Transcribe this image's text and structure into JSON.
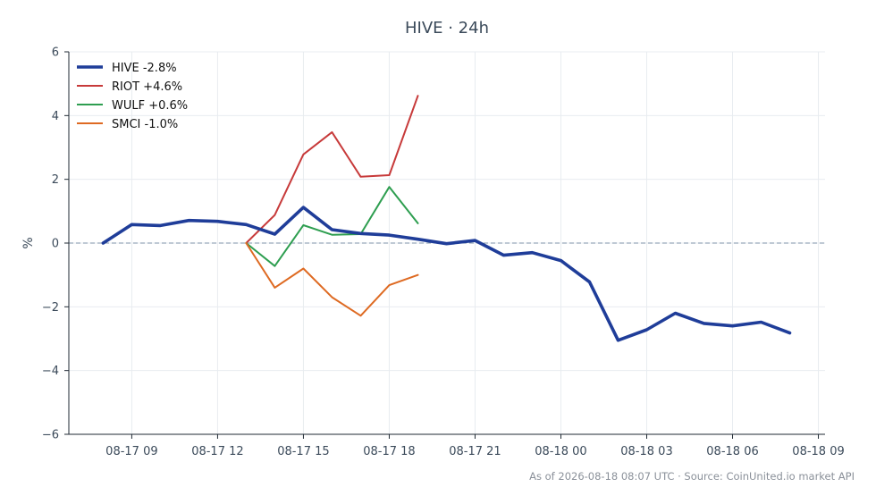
{
  "chart_data": {
    "type": "line",
    "title": "HIVE · 24h",
    "xlabel": "",
    "ylabel": "%",
    "ylim": [
      -6,
      6
    ],
    "yticks": [
      -6,
      -4,
      -2,
      0,
      2,
      4,
      6
    ],
    "ytick_labels": [
      "−6",
      "−4",
      "−2",
      "0",
      "2",
      "4",
      "6"
    ],
    "xlim": [
      "2026-08-17 06:48",
      "2026-08-18 09:14"
    ],
    "xticks": [
      "2026-08-17 09:00",
      "2026-08-17 12:00",
      "2026-08-17 15:00",
      "2026-08-17 18:00",
      "2026-08-17 21:00",
      "2026-08-18 00:00",
      "2026-08-18 03:00",
      "2026-08-18 06:00",
      "2026-08-18 09:00"
    ],
    "xtick_labels": [
      "08-17 09",
      "08-17 12",
      "08-17 15",
      "08-17 18",
      "08-17 21",
      "08-18 00",
      "08-18 03",
      "08-18 06",
      "08-18 09"
    ],
    "grid": true,
    "zero_line": true,
    "legend_position": "top-left",
    "series": [
      {
        "name": "HIVE -2.8%",
        "color": "#1f3d99",
        "emphasis": "bold",
        "x": [
          "2026-08-17 08:00",
          "2026-08-17 09:00",
          "2026-08-17 10:00",
          "2026-08-17 11:00",
          "2026-08-17 12:00",
          "2026-08-17 13:00",
          "2026-08-17 14:00",
          "2026-08-17 15:00",
          "2026-08-17 16:00",
          "2026-08-17 17:00",
          "2026-08-17 18:00",
          "2026-08-17 19:00",
          "2026-08-17 20:00",
          "2026-08-17 21:00",
          "2026-08-17 22:00",
          "2026-08-17 23:00",
          "2026-08-18 00:00",
          "2026-08-18 01:00",
          "2026-08-18 02:00",
          "2026-08-18 03:00",
          "2026-08-18 04:00",
          "2026-08-18 05:00",
          "2026-08-18 06:00",
          "2026-08-18 07:00",
          "2026-08-18 08:00"
        ],
        "y": [
          0.0,
          0.58,
          0.55,
          0.71,
          0.68,
          0.58,
          0.28,
          1.12,
          0.42,
          0.3,
          0.25,
          0.12,
          -0.02,
          0.08,
          -0.38,
          -0.3,
          -0.55,
          -1.22,
          -3.05,
          -2.72,
          -2.2,
          -2.52,
          -2.6,
          -2.48,
          -2.82
        ]
      },
      {
        "name": "RIOT +4.6%",
        "color": "#c73a3a",
        "emphasis": "normal",
        "x": [
          "2026-08-17 13:00",
          "2026-08-17 14:00",
          "2026-08-17 15:00",
          "2026-08-17 16:00",
          "2026-08-17 17:00",
          "2026-08-17 18:00",
          "2026-08-17 19:00"
        ],
        "y": [
          0.0,
          0.88,
          2.78,
          3.48,
          2.08,
          2.13,
          4.62
        ]
      },
      {
        "name": "WULF +0.6%",
        "color": "#2e9e50",
        "emphasis": "normal",
        "x": [
          "2026-08-17 13:00",
          "2026-08-17 14:00",
          "2026-08-17 15:00",
          "2026-08-17 16:00",
          "2026-08-17 17:00",
          "2026-08-17 18:00",
          "2026-08-17 19:00"
        ],
        "y": [
          0.0,
          -0.72,
          0.56,
          0.26,
          0.28,
          1.76,
          0.62
        ]
      },
      {
        "name": "SMCI -1.0%",
        "color": "#de6a22",
        "emphasis": "normal",
        "x": [
          "2026-08-17 13:00",
          "2026-08-17 14:00",
          "2026-08-17 15:00",
          "2026-08-17 16:00",
          "2026-08-17 17:00",
          "2026-08-17 18:00",
          "2026-08-17 19:00"
        ],
        "y": [
          0.0,
          -1.4,
          -0.8,
          -1.7,
          -2.28,
          -1.32,
          -1.0
        ]
      }
    ]
  },
  "footer": "As of 2026-08-18 08:07 UTC · Source: CoinUnited.io market API"
}
